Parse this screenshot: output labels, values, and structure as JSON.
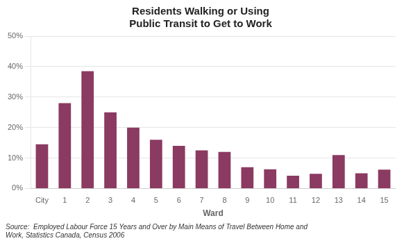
{
  "chart_data": {
    "type": "bar",
    "title": [
      "Residents Walking or Using",
      "Public Transit to Get to Work"
    ],
    "xlabel": "Ward",
    "categories": [
      "City",
      "1",
      "2",
      "3",
      "4",
      "5",
      "6",
      "7",
      "8",
      "9",
      "10",
      "11",
      "12",
      "13",
      "14",
      "15"
    ],
    "values": [
      0.145,
      0.28,
      0.385,
      0.25,
      0.2,
      0.16,
      0.14,
      0.125,
      0.12,
      0.07,
      0.063,
      0.042,
      0.048,
      0.11,
      0.05,
      0.062
    ],
    "color": "#8B3A62",
    "ylim": [
      0,
      0.5
    ],
    "yticks": [
      {
        "value": 0.0,
        "label": "0%"
      },
      {
        "value": 0.1,
        "label": "10%"
      },
      {
        "value": 0.2,
        "label": "20%"
      },
      {
        "value": 0.3,
        "label": "30%"
      },
      {
        "value": 0.4,
        "label": "40%"
      },
      {
        "value": 0.5,
        "label": "50%"
      }
    ],
    "grid": true,
    "annotation": [
      "Source:  Employed Labour Force 15 Years and Over by Main Means of Travel Between Home and",
      "Work, Statistics Canada, Census 2006"
    ]
  }
}
